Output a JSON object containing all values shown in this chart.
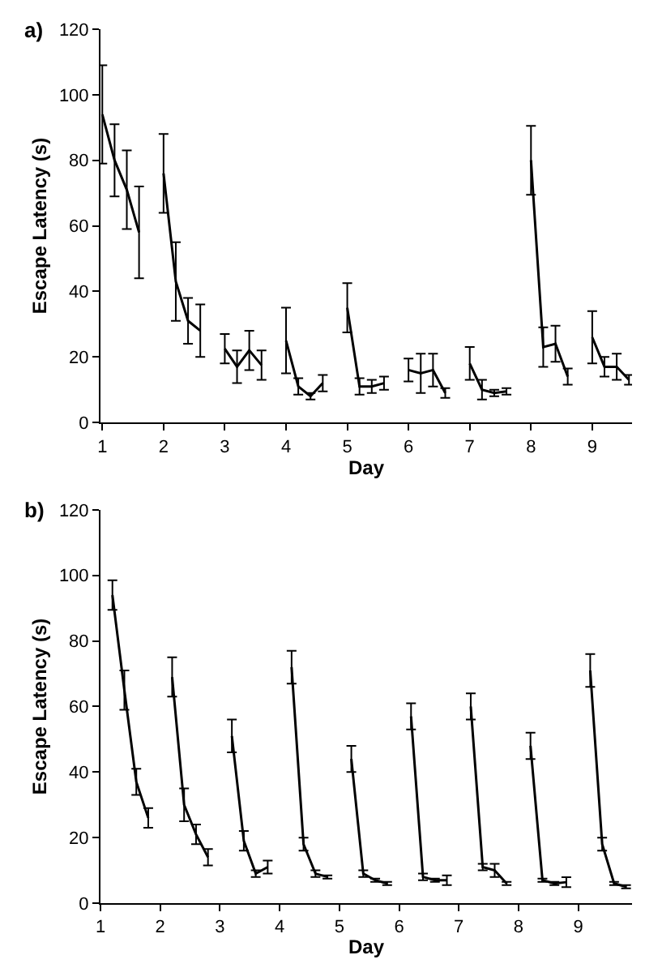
{
  "chart_data": [
    {
      "type": "line",
      "title": "a)",
      "xlabel": "Day",
      "ylabel": "Escape Latency (s)",
      "xlim": [
        0.97,
        9.65
      ],
      "xticks": [
        1,
        2,
        3,
        4,
        5,
        6,
        7,
        8,
        9
      ],
      "ylim": [
        0,
        120
      ],
      "yticks": [
        0,
        20,
        40,
        60,
        80,
        100,
        120
      ],
      "line_style": "solid",
      "series": [
        {
          "color": "#000000",
          "x": [
            1.0,
            1.2,
            1.4,
            1.6
          ],
          "values": [
            94,
            80,
            71,
            58
          ],
          "errors": [
            15,
            11,
            12,
            14
          ]
        },
        {
          "color": "#000000",
          "x": [
            2.0,
            2.2,
            2.4,
            2.6
          ],
          "values": [
            76,
            43,
            31,
            28
          ],
          "errors": [
            12,
            12,
            7,
            8
          ]
        },
        {
          "color": "#000000",
          "x": [
            3.0,
            3.2,
            3.4,
            3.6
          ],
          "values": [
            22.5,
            17,
            22,
            17.5
          ],
          "errors": [
            4.5,
            5,
            6,
            4.5
          ]
        },
        {
          "color": "#000000",
          "x": [
            4.0,
            4.2,
            4.4,
            4.6
          ],
          "values": [
            25,
            11,
            8,
            12
          ],
          "errors": [
            10,
            2.5,
            1,
            2.5
          ]
        },
        {
          "color": "#000000",
          "x": [
            5.0,
            5.2,
            5.4,
            5.6
          ],
          "values": [
            35,
            11,
            11,
            12
          ],
          "errors": [
            7.5,
            2.5,
            2,
            2
          ]
        },
        {
          "color": "#000000",
          "x": [
            6.0,
            6.2,
            6.4,
            6.6
          ],
          "values": [
            16,
            15,
            16,
            9
          ],
          "errors": [
            3.5,
            6,
            5,
            1.5
          ]
        },
        {
          "color": "#000000",
          "x": [
            7.0,
            7.2,
            7.4,
            7.6
          ],
          "values": [
            18,
            10,
            9,
            9.5
          ],
          "errors": [
            5,
            3,
            1,
            1
          ]
        },
        {
          "color": "#000000",
          "x": [
            8.0,
            8.2,
            8.4,
            8.6
          ],
          "values": [
            80,
            23,
            24,
            14
          ],
          "errors": [
            10.5,
            6,
            5.5,
            2.5
          ]
        },
        {
          "color": "#000000",
          "x": [
            9.0,
            9.2,
            9.4,
            9.6
          ],
          "values": [
            26,
            17,
            17,
            13
          ],
          "errors": [
            8,
            3,
            4,
            1.5
          ]
        }
      ]
    },
    {
      "type": "line",
      "title": "b)",
      "xlabel": "Day",
      "ylabel": "Escape Latency (s)",
      "xlim": [
        1,
        9.9
      ],
      "xticks": [
        1,
        2,
        3,
        4,
        5,
        6,
        7,
        8,
        9
      ],
      "ylim": [
        0,
        120
      ],
      "yticks": [
        0,
        20,
        40,
        60,
        80,
        100,
        120
      ],
      "line_style": "solid",
      "series": [
        {
          "color": "#000000",
          "x": [
            1.2,
            1.4,
            1.6,
            1.8
          ],
          "values": [
            94,
            65,
            37,
            26
          ],
          "errors": [
            4.5,
            6,
            4,
            3
          ]
        },
        {
          "color": "#000000",
          "x": [
            2.2,
            2.4,
            2.6,
            2.8
          ],
          "values": [
            69,
            30,
            21,
            14
          ],
          "errors": [
            6,
            5,
            3,
            2.5
          ]
        },
        {
          "color": "#000000",
          "x": [
            3.2,
            3.4,
            3.6,
            3.8
          ],
          "values": [
            51,
            19,
            9,
            11
          ],
          "errors": [
            5,
            3,
            1,
            2
          ]
        },
        {
          "color": "#000000",
          "x": [
            4.2,
            4.4,
            4.6,
            4.8
          ],
          "values": [
            72,
            18,
            9,
            8
          ],
          "errors": [
            5,
            2,
            1,
            0.5
          ]
        },
        {
          "color": "#000000",
          "x": [
            5.2,
            5.4,
            5.6,
            5.8
          ],
          "values": [
            44,
            9,
            7,
            6
          ],
          "errors": [
            4,
            1,
            0.5,
            0.5
          ]
        },
        {
          "color": "#000000",
          "x": [
            6.2,
            6.4,
            6.6,
            6.8
          ],
          "values": [
            57,
            8,
            7,
            7
          ],
          "errors": [
            4,
            1,
            0.5,
            1.5
          ]
        },
        {
          "color": "#000000",
          "x": [
            7.2,
            7.4,
            7.6,
            7.8
          ],
          "values": [
            60,
            11,
            10,
            6
          ],
          "errors": [
            4,
            1,
            2,
            0.5
          ]
        },
        {
          "color": "#000000",
          "x": [
            8.2,
            8.4,
            8.6,
            8.8
          ],
          "values": [
            48,
            7,
            6,
            6.4
          ],
          "errors": [
            4,
            0.5,
            0.5,
            1.5
          ]
        },
        {
          "color": "#000000",
          "x": [
            9.2,
            9.4,
            9.6,
            9.8
          ],
          "values": [
            71,
            18,
            6,
            5
          ],
          "errors": [
            5,
            2,
            0.5,
            0.5
          ]
        }
      ]
    }
  ]
}
